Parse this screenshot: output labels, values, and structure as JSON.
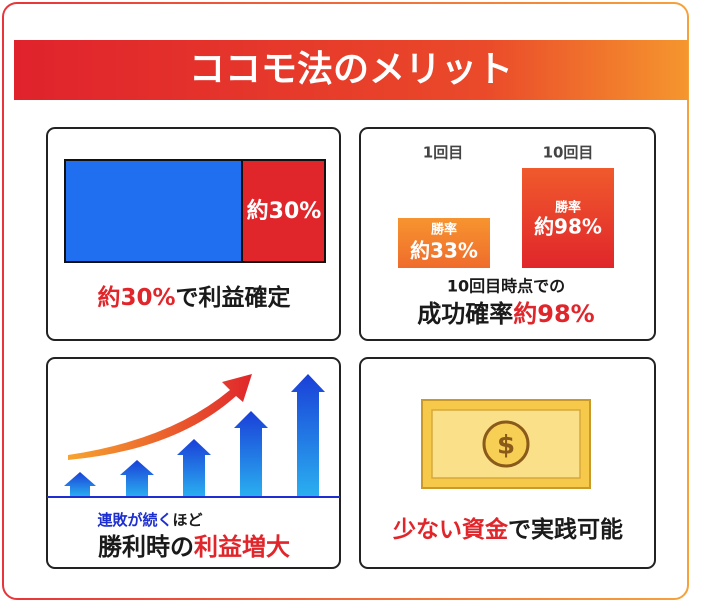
{
  "header": {
    "title": "ココモ法のメリット"
  },
  "panels": [
    {
      "bar_label": "約30%",
      "caption": [
        {
          "text": "約30%",
          "style": "red"
        },
        {
          "text": "で利益確定",
          "style": "black"
        }
      ]
    },
    {
      "bars": [
        {
          "label": "1回目",
          "rate_label": "勝率",
          "rate": "約33%"
        },
        {
          "label": "10回目",
          "rate_label": "勝率",
          "rate": "約98%"
        }
      ],
      "caption_small": "10回目時点での",
      "caption": [
        {
          "text": "成功確率",
          "style": "black"
        },
        {
          "text": "約98%",
          "style": "red"
        }
      ]
    },
    {
      "caption_small": [
        {
          "text": "連敗が続く",
          "style": "blue"
        },
        {
          "text": "ほど",
          "style": "black"
        }
      ],
      "caption": [
        {
          "text": "勝利時の",
          "style": "black"
        },
        {
          "text": "利益増大",
          "style": "red"
        }
      ]
    },
    {
      "coin_symbol": "$",
      "caption": [
        {
          "text": "少ない資金",
          "style": "red"
        },
        {
          "text": "で実践可能",
          "style": "black"
        }
      ]
    }
  ]
}
